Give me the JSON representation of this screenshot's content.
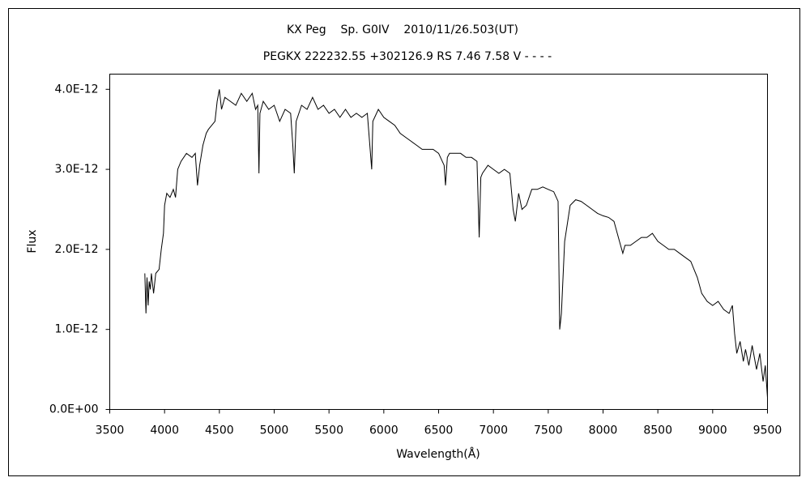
{
  "chart_data": {
    "type": "line",
    "title": "KX Peg    Sp. G0IV    2010/11/26.503(UT)",
    "subtitle": "PEGKX 222232.55 +302126.9 RS 7.46 7.58 V - - - -",
    "x_label": "Wavelength(Å)",
    "y_label": "Flux",
    "color": "#000000",
    "xlim": [
      3500,
      9500
    ],
    "xticks": [
      3500,
      4000,
      4500,
      5000,
      5500,
      6000,
      6500,
      7000,
      7500,
      8000,
      8500,
      9000,
      9500
    ],
    "ylim": [
      0,
      4.19e-12
    ],
    "yticks": [
      {
        "value": 0,
        "label": "0.0E+00"
      },
      {
        "value": 1e-12,
        "label": "1.0E-12"
      },
      {
        "value": 2e-12,
        "label": "2.0E-12"
      },
      {
        "value": 3e-12,
        "label": "3.0E-12"
      },
      {
        "value": 4e-12,
        "label": "4.0E-12"
      }
    ],
    "x": [
      3820,
      3830,
      3840,
      3850,
      3860,
      3870,
      3880,
      3900,
      3920,
      3950,
      3970,
      3990,
      4000,
      4020,
      4050,
      4080,
      4100,
      4120,
      4150,
      4200,
      4250,
      4280,
      4300,
      4320,
      4350,
      4380,
      4400,
      4430,
      4460,
      4480,
      4500,
      4520,
      4550,
      4600,
      4650,
      4700,
      4750,
      4800,
      4830,
      4850,
      4861,
      4870,
      4900,
      4950,
      5000,
      5050,
      5100,
      5150,
      5170,
      5183,
      5200,
      5250,
      5300,
      5350,
      5400,
      5450,
      5500,
      5550,
      5600,
      5650,
      5700,
      5750,
      5800,
      5850,
      5890,
      5900,
      5950,
      6000,
      6050,
      6100,
      6150,
      6200,
      6250,
      6300,
      6350,
      6400,
      6450,
      6500,
      6550,
      6563,
      6580,
      6600,
      6650,
      6700,
      6750,
      6800,
      6850,
      6870,
      6885,
      6900,
      6950,
      7000,
      7050,
      7100,
      7150,
      7180,
      7200,
      7230,
      7260,
      7300,
      7350,
      7400,
      7450,
      7500,
      7550,
      7590,
      7605,
      7620,
      7650,
      7700,
      7750,
      7800,
      7850,
      7900,
      7950,
      8000,
      8050,
      8100,
      8150,
      8180,
      8200,
      8250,
      8300,
      8350,
      8400,
      8450,
      8500,
      8550,
      8600,
      8650,
      8700,
      8750,
      8800,
      8830,
      8860,
      8900,
      8950,
      9000,
      9050,
      9100,
      9150,
      9180,
      9200,
      9220,
      9250,
      9280,
      9300,
      9330,
      9360,
      9400,
      9430,
      9460,
      9480,
      9500
    ],
    "values": [
      1.7e-12,
      1.2e-12,
      1.65e-12,
      1.3e-12,
      1.6e-12,
      1.5e-12,
      1.7e-12,
      1.45e-12,
      1.7e-12,
      1.75e-12,
      2e-12,
      2.2e-12,
      2.55e-12,
      2.7e-12,
      2.65e-12,
      2.75e-12,
      2.65e-12,
      3e-12,
      3.1e-12,
      3.2e-12,
      3.15e-12,
      3.2e-12,
      2.8e-12,
      3.05e-12,
      3.3e-12,
      3.45e-12,
      3.5e-12,
      3.55e-12,
      3.6e-12,
      3.85e-12,
      4e-12,
      3.75e-12,
      3.9e-12,
      3.85e-12,
      3.8e-12,
      3.95e-12,
      3.85e-12,
      3.95e-12,
      3.75e-12,
      3.8e-12,
      2.95e-12,
      3.7e-12,
      3.85e-12,
      3.75e-12,
      3.8e-12,
      3.6e-12,
      3.75e-12,
      3.7e-12,
      3.3e-12,
      2.95e-12,
      3.6e-12,
      3.8e-12,
      3.75e-12,
      3.9e-12,
      3.75e-12,
      3.8e-12,
      3.7e-12,
      3.75e-12,
      3.65e-12,
      3.75e-12,
      3.65e-12,
      3.7e-12,
      3.65e-12,
      3.7e-12,
      3e-12,
      3.6e-12,
      3.75e-12,
      3.65e-12,
      3.6e-12,
      3.55e-12,
      3.45e-12,
      3.4e-12,
      3.35e-12,
      3.3e-12,
      3.25e-12,
      3.25e-12,
      3.25e-12,
      3.2e-12,
      3.05e-12,
      2.8e-12,
      3.15e-12,
      3.2e-12,
      3.2e-12,
      3.2e-12,
      3.15e-12,
      3.15e-12,
      3.1e-12,
      2.15e-12,
      2.9e-12,
      2.95e-12,
      3.05e-12,
      3e-12,
      2.95e-12,
      3e-12,
      2.95e-12,
      2.5e-12,
      2.35e-12,
      2.7e-12,
      2.5e-12,
      2.55e-12,
      2.75e-12,
      2.75e-12,
      2.78e-12,
      2.75e-12,
      2.72e-12,
      2.6e-12,
      1e-12,
      1.2e-12,
      2.1e-12,
      2.55e-12,
      2.62e-12,
      2.6e-12,
      2.55e-12,
      2.5e-12,
      2.45e-12,
      2.42e-12,
      2.4e-12,
      2.35e-12,
      2.1e-12,
      1.95e-12,
      2.05e-12,
      2.05e-12,
      2.1e-12,
      2.15e-12,
      2.15e-12,
      2.2e-12,
      2.1e-12,
      2.05e-12,
      2e-12,
      2e-12,
      1.95e-12,
      1.9e-12,
      1.85e-12,
      1.75e-12,
      1.65e-12,
      1.45e-12,
      1.35e-12,
      1.3e-12,
      1.35e-12,
      1.25e-12,
      1.2e-12,
      1.3e-12,
      9.5e-13,
      7e-13,
      8.5e-13,
      6e-13,
      7.5e-13,
      5.5e-13,
      8e-13,
      5e-13,
      7e-13,
      3.5e-13,
      5.5e-13,
      1.5e-13
    ]
  }
}
